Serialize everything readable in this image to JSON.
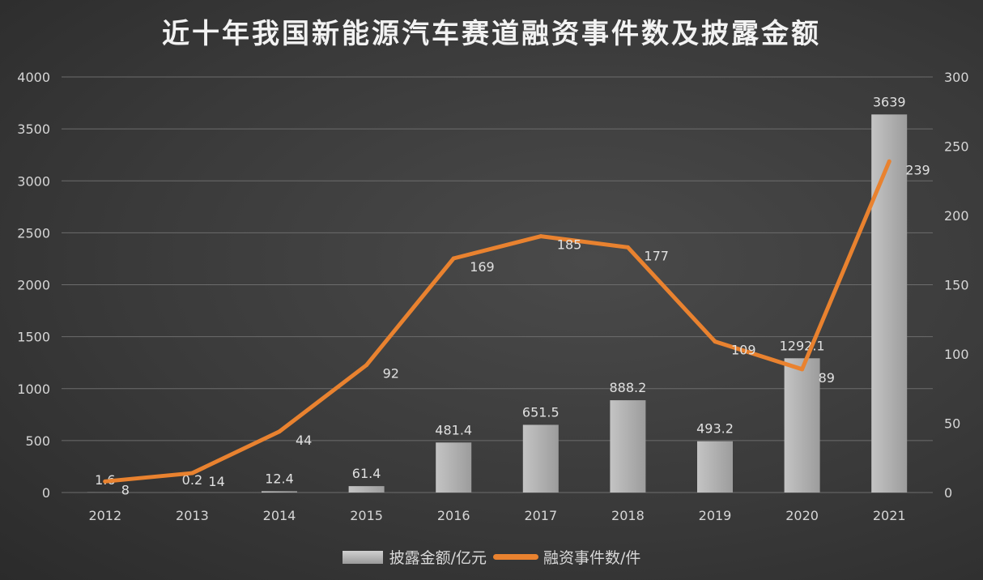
{
  "chart_data": {
    "type": "bar+line",
    "title": "近十年我国新能源汽车赛道融资事件数及披露金额",
    "categories": [
      "2012",
      "2013",
      "2014",
      "2015",
      "2016",
      "2017",
      "2018",
      "2019",
      "2020",
      "2021"
    ],
    "series": [
      {
        "name": "披露金额/亿元",
        "type": "bar",
        "axis": "left",
        "values": [
          1.6,
          0.2,
          12.4,
          61.4,
          481.4,
          651.5,
          888.2,
          493.2,
          1292.1,
          3639
        ],
        "color": "#b4b4b4"
      },
      {
        "name": "融资事件数/件",
        "type": "line",
        "axis": "right",
        "values": [
          8,
          14,
          44,
          92,
          169,
          185,
          177,
          109,
          89,
          239
        ],
        "color": "#e9822f"
      }
    ],
    "ylim_left": [
      0,
      4000
    ],
    "yticks_left": [
      "0",
      "500",
      "1000",
      "1500",
      "2000",
      "2500",
      "3000",
      "3500",
      "4000"
    ],
    "ylim_right": [
      0,
      300
    ],
    "yticks_right": [
      "0",
      "50",
      "100",
      "150",
      "200",
      "250",
      "300"
    ],
    "grid": true,
    "legend": "bottom"
  }
}
